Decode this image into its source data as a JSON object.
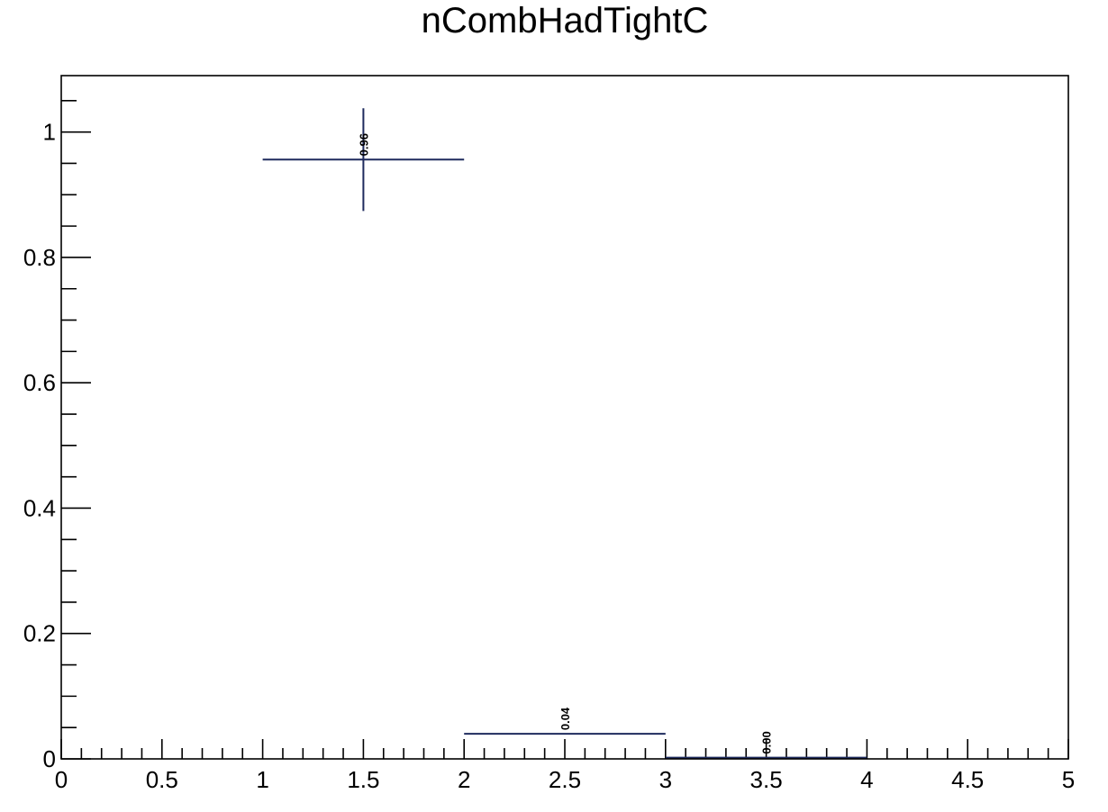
{
  "chart_data": {
    "type": "bar",
    "title": "nCombHadTightC",
    "xlabel": "",
    "ylabel": "",
    "xlim": [
      0,
      5
    ],
    "ylim": [
      0,
      1.09
    ],
    "grid": false,
    "legend": "none",
    "x_ticks": [
      {
        "value": 0,
        "label": "0"
      },
      {
        "value": 0.5,
        "label": "0.5"
      },
      {
        "value": 1,
        "label": "1"
      },
      {
        "value": 1.5,
        "label": "1.5"
      },
      {
        "value": 2,
        "label": "2"
      },
      {
        "value": 2.5,
        "label": "2.5"
      },
      {
        "value": 3,
        "label": "3"
      },
      {
        "value": 3.5,
        "label": "3.5"
      },
      {
        "value": 4,
        "label": "4"
      },
      {
        "value": 4.5,
        "label": "4.5"
      },
      {
        "value": 5,
        "label": "5"
      }
    ],
    "y_ticks": [
      {
        "value": 0,
        "label": "0"
      },
      {
        "value": 0.2,
        "label": "0.2"
      },
      {
        "value": 0.4,
        "label": "0.4"
      },
      {
        "value": 0.6,
        "label": "0.6"
      },
      {
        "value": 0.8,
        "label": "0.8"
      },
      {
        "value": 1,
        "label": "1"
      }
    ],
    "bins": [
      {
        "low": 1,
        "high": 2,
        "value": 0.956,
        "error": 0.082,
        "label": "0.96"
      },
      {
        "low": 2,
        "high": 3,
        "value": 0.04,
        "error": 0.0,
        "label": "0.04"
      },
      {
        "low": 3,
        "high": 4,
        "value": 0.002,
        "error": 0.0,
        "label": "0.00"
      }
    ],
    "colors": {
      "marker": "#1f2b5e",
      "axis": "#000000"
    }
  }
}
